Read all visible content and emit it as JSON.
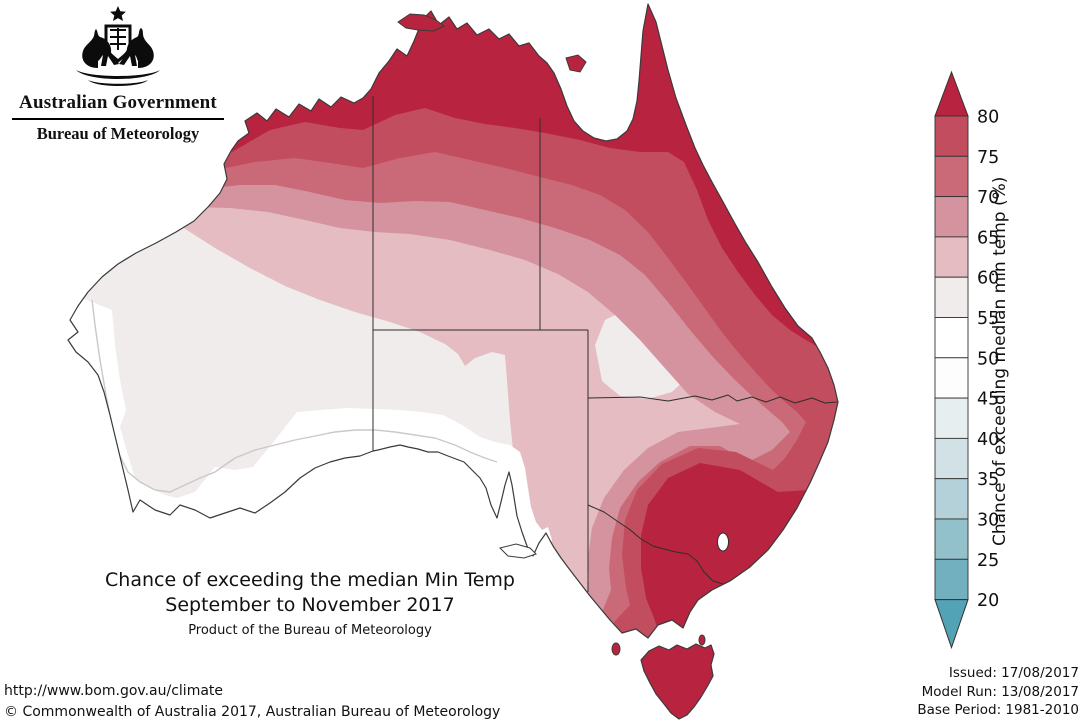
{
  "logo": {
    "government": "Australian Government",
    "bureau": "Bureau of Meteorology"
  },
  "title": {
    "line1": "Chance of exceeding the median Min Temp",
    "line2": "September to November 2017",
    "line3": "Product of the Bureau of Meteorology"
  },
  "legend": {
    "axis_label": "Chance of exceeding median min temp (%)",
    "ticks": [
      80,
      75,
      70,
      65,
      60,
      55,
      50,
      45,
      40,
      35,
      30,
      25,
      20
    ],
    "segment_colors": [
      "#c24d5e",
      "#ca6a78",
      "#d4939e",
      "#e4bcc2",
      "#efeceb",
      "#ffffff",
      "#fdfdfd",
      "#e7eef0",
      "#d2e1e5",
      "#b4d0d8",
      "#92c1cb",
      "#72b0bf"
    ],
    "arrow_top_color": "#b8243f",
    "arrow_bottom_color": "#52a3b6"
  },
  "map_colors": {
    "band_80": "#b8243f",
    "band_75": "#c24d5e",
    "band_70": "#ca6a78",
    "band_65": "#d4939e",
    "band_60": "#e4bcc2",
    "band_55": "#efeceb",
    "band_50": "#ffffff",
    "coast": "#3a3a3a"
  },
  "footer": {
    "url": "http://www.bom.gov.au/climate",
    "copyright": "© Commonwealth of Australia 2017, Australian Bureau of Meteorology",
    "issued": "Issued: 17/08/2017",
    "model_run": "Model Run: 13/08/2017",
    "base_period": "Base Period: 1981-2010"
  }
}
